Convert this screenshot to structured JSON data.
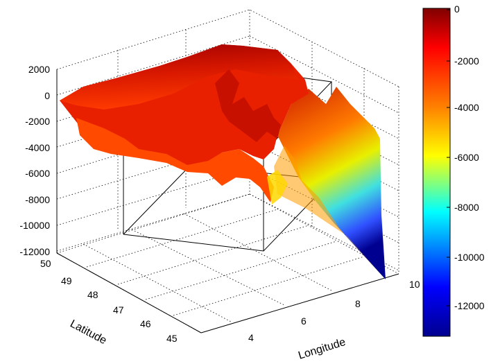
{
  "chart_data": {
    "type": "surface3d",
    "title": "",
    "xlabel": "Longitude",
    "ylabel": "Latitude",
    "zlabel": "",
    "x_ticks": [
      4,
      6,
      8,
      10
    ],
    "y_ticks": [
      45,
      46,
      47,
      48,
      49,
      50
    ],
    "z_ticks": [
      2000,
      0,
      -2000,
      -4000,
      -6000,
      -8000,
      -10000,
      -12000
    ],
    "xlim": [
      3,
      10
    ],
    "ylim": [
      45,
      50
    ],
    "zlim": [
      -12000,
      2000
    ],
    "grid": true,
    "colormap": "jet",
    "colorbar": {
      "ticks": [
        0,
        -2000,
        -4000,
        -6000,
        -8000,
        -10000,
        -12000
      ],
      "range": [
        -13000,
        0
      ],
      "colors": [
        "#00008f",
        "#0000ff",
        "#00ffff",
        "#ffff00",
        "#ff8000",
        "#ff0000",
        "#800000"
      ]
    },
    "surface_trace": [
      {
        "lon": 3.0,
        "lat": 45.0,
        "depth": -500
      },
      {
        "lon": 4.5,
        "lat": 45.5,
        "depth": -1500
      },
      {
        "lon": 5.5,
        "lat": 46.5,
        "depth": -2500
      },
      {
        "lon": 6.5,
        "lat": 47.0,
        "depth": -3500
      },
      {
        "lon": 7.5,
        "lat": 47.5,
        "depth": -5000
      },
      {
        "lon": 8.5,
        "lat": 48.5,
        "depth": -8000
      },
      {
        "lon": 9.5,
        "lat": 49.5,
        "depth": -12500
      }
    ]
  }
}
